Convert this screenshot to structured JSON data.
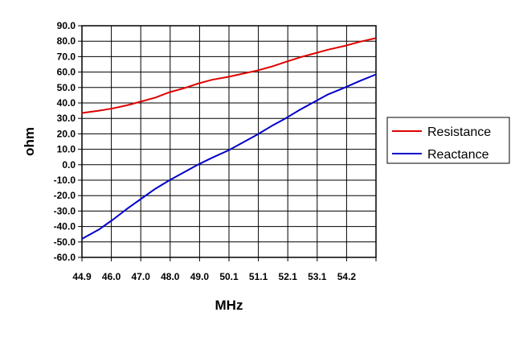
{
  "chart_data": {
    "type": "line",
    "title": "",
    "xlabel": "MHz",
    "ylabel": "ohm",
    "ylim": [
      -60,
      90
    ],
    "xlim": [
      44.9,
      55.3
    ],
    "grid": true,
    "legend_position": "right",
    "x_tick_labels": [
      "44.9",
      "46.0",
      "47.0",
      "48.0",
      "49.0",
      "50.1",
      "51.1",
      "52.1",
      "53.1",
      "54.2"
    ],
    "y_tick_labels": [
      "90.0",
      "80.0",
      "70.0",
      "60.0",
      "50.0",
      "40.0",
      "30.0",
      "20.0",
      "10.0",
      "0.0",
      "-10.0",
      "-20.0",
      "-30.0",
      "-40.0",
      "-50.0",
      "-60.0"
    ],
    "series": [
      {
        "name": "Resistance",
        "color": "#e00000",
        "x": [
          44.9,
          45.5,
          46.0,
          46.5,
          47.0,
          47.5,
          48.0,
          48.5,
          49.0,
          49.5,
          50.1,
          50.6,
          51.1,
          51.6,
          52.1,
          52.6,
          53.1,
          53.6,
          54.2,
          54.7,
          55.3
        ],
        "y": [
          33.5,
          35.0,
          36.5,
          38.5,
          41.0,
          43.5,
          47.0,
          49.5,
          52.5,
          55.0,
          57.0,
          59.0,
          61.0,
          63.5,
          66.5,
          69.5,
          72.0,
          74.5,
          77.0,
          79.5,
          82.0
        ]
      },
      {
        "name": "Reactance",
        "color": "#0000cc",
        "x": [
          44.9,
          45.5,
          46.0,
          46.5,
          47.0,
          47.5,
          48.0,
          48.5,
          49.0,
          49.5,
          50.1,
          50.6,
          51.1,
          51.6,
          52.1,
          52.6,
          53.1,
          53.6,
          54.2,
          54.7,
          55.3
        ],
        "y": [
          -48.0,
          -42.0,
          -35.5,
          -28.5,
          -22.0,
          -15.5,
          -10.0,
          -5.0,
          0.0,
          4.5,
          9.5,
          14.5,
          19.5,
          25.0,
          30.0,
          35.5,
          40.5,
          45.5,
          50.0,
          54.0,
          58.5
        ]
      }
    ]
  }
}
